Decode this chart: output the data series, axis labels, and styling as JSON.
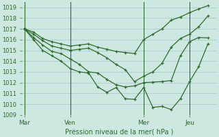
{
  "bg_color": "#cce8e0",
  "grid_color": "#aacccc",
  "line_color": "#2d6a2d",
  "title": "Pression niveau de la mer( hPa )",
  "ylim": [
    1009,
    1019.5
  ],
  "yticks": [
    1009,
    1010,
    1011,
    1012,
    1013,
    1014,
    1015,
    1016,
    1017,
    1018,
    1019
  ],
  "xtick_labels": [
    "Mar",
    "Ven",
    "Mer",
    "Jeu"
  ],
  "xtick_positions": [
    0,
    5,
    13,
    18
  ],
  "vline_positions": [
    0,
    5,
    13,
    18
  ],
  "xlim": [
    -0.3,
    21
  ],
  "line1_y": [
    1017.0,
    1016.7,
    1016.1,
    1015.8,
    1015.6,
    1015.4,
    1015.5,
    1015.6,
    1015.3,
    1015.1,
    1014.9,
    1014.8,
    1014.7,
    1016.0,
    1016.5,
    1017.0,
    1017.8,
    1018.1,
    1018.5,
    1018.85,
    1019.15
  ],
  "line2_y": [
    1017.0,
    1016.5,
    1015.9,
    1015.4,
    1015.2,
    1015.0,
    1015.1,
    1015.2,
    1014.8,
    1014.3,
    1013.7,
    1013.2,
    1012.1,
    1012.6,
    1013.0,
    1013.8,
    1015.3,
    1016.1,
    1016.5,
    1017.2,
    1018.2
  ],
  "line3_y": [
    1017.0,
    1016.2,
    1015.5,
    1014.9,
    1014.7,
    1014.2,
    1013.7,
    1013.0,
    1012.9,
    1012.3,
    1011.8,
    1011.6,
    1011.7,
    1012.0,
    1012.05,
    1012.1,
    1012.2,
    1014.5,
    1015.8,
    1016.2,
    1016.15
  ],
  "line4_y": [
    1017.0,
    1016.0,
    1015.0,
    1014.5,
    1014.0,
    1013.3,
    1013.0,
    1012.9,
    1011.6,
    1011.1,
    1011.55,
    1010.5,
    1010.45,
    1011.55,
    1009.7,
    1009.8,
    1009.5,
    1010.5,
    1012.1,
    1013.5,
    1015.6
  ]
}
